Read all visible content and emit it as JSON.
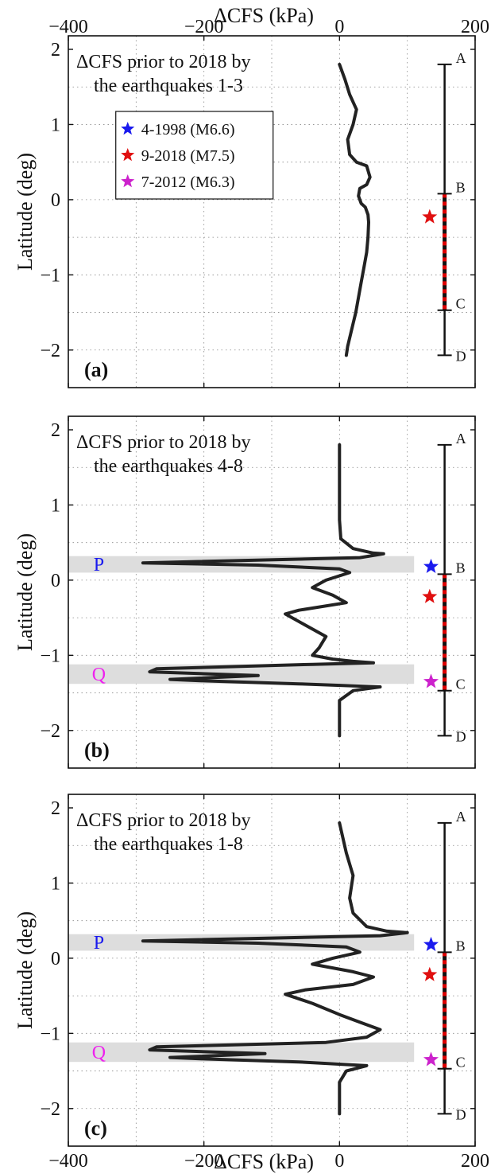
{
  "figure": {
    "top_xlabel": "ΔCFS (kPa)",
    "bottom_xlabel": "ΔCFS (kPa)",
    "ylabel": "Latitude (deg)",
    "xticks": [
      -400,
      -200,
      0,
      200
    ],
    "yticks": [
      2,
      1,
      0,
      -1,
      -2
    ],
    "xlim": [
      -400,
      200
    ],
    "ylim": [
      -2.5,
      2
    ],
    "colors": {
      "curve": "#222222",
      "band": "#dddddd",
      "fault": "#111111",
      "rupture": "#e00000"
    }
  },
  "legend": [
    {
      "label": "4-1998 (M6.6)",
      "color": "#1a1aee"
    },
    {
      "label": "9-2018 (M7.5)",
      "color": "#e01010"
    },
    {
      "label": "7-2012 (M6.3)",
      "color": "#cc22cc"
    }
  ],
  "fault_segment": {
    "points": [
      {
        "name": "A",
        "lat": 1.8
      },
      {
        "name": "B",
        "lat": 0.08
      },
      {
        "name": "C",
        "lat": -1.47
      },
      {
        "name": "D",
        "lat": -2.07
      }
    ],
    "x": 155
  },
  "panels": [
    {
      "label": "(a)",
      "annotation_line1": "ΔCFS prior to 2018 by",
      "annotation_line2": "the earthquakes 1-3",
      "show_legend": true,
      "bands": [],
      "stars": [
        {
          "event": "9-2018 (M7.5)",
          "lat": -0.23,
          "x": 133,
          "color": "#e01010"
        }
      ]
    },
    {
      "label": "(b)",
      "annotation_line1": "ΔCFS prior to 2018 by",
      "annotation_line2": "the earthquakes 4-8",
      "show_legend": false,
      "bands": [
        {
          "label": "P",
          "label_color": "#1a1aee",
          "lat_min": 0.1,
          "lat_max": 0.32
        },
        {
          "label": "Q",
          "label_color": "#ee22ee",
          "lat_min": -1.38,
          "lat_max": -1.12
        }
      ],
      "stars": [
        {
          "event": "4-1998 (M6.6)",
          "lat": 0.18,
          "x": 135,
          "color": "#1a1aee"
        },
        {
          "event": "9-2018 (M7.5)",
          "lat": -0.22,
          "x": 133,
          "color": "#e01010"
        },
        {
          "event": "7-2012 (M6.3)",
          "lat": -1.35,
          "x": 135,
          "color": "#cc22cc"
        }
      ]
    },
    {
      "label": "(c)",
      "annotation_line1": "ΔCFS prior to 2018 by",
      "annotation_line2": "the earthquakes 1-8",
      "show_legend": false,
      "bands": [
        {
          "label": "P",
          "label_color": "#1a1aee",
          "lat_min": 0.1,
          "lat_max": 0.32
        },
        {
          "label": "Q",
          "label_color": "#ee22ee",
          "lat_min": -1.38,
          "lat_max": -1.12
        }
      ],
      "stars": [
        {
          "event": "4-1998 (M6.6)",
          "lat": 0.18,
          "x": 135,
          "color": "#1a1aee"
        },
        {
          "event": "9-2018 (M7.5)",
          "lat": -0.22,
          "x": 133,
          "color": "#e01010"
        },
        {
          "event": "7-2012 (M6.3)",
          "lat": -1.35,
          "x": 135,
          "color": "#cc22cc"
        }
      ]
    }
  ],
  "chart_data": [
    {
      "type": "line",
      "title": "ΔCFS prior to 2018 by the earthquakes 1-3",
      "xlabel": "ΔCFS (kPa)",
      "ylabel": "Latitude (deg)",
      "xlim": [
        -400,
        200
      ],
      "ylim": [
        -2.5,
        2
      ],
      "grid": true,
      "series": [
        {
          "x": [
            0,
            8,
            15,
            25,
            20,
            12,
            15,
            25,
            40,
            45,
            40,
            30,
            28,
            32,
            38,
            42,
            43,
            42,
            40,
            36,
            32,
            28,
            24,
            20,
            16,
            12,
            10
          ],
          "y": [
            1.8,
            1.6,
            1.4,
            1.2,
            1.0,
            0.8,
            0.6,
            0.5,
            0.45,
            0.3,
            0.2,
            0.15,
            0.05,
            -0.05,
            -0.1,
            -0.2,
            -0.3,
            -0.5,
            -0.7,
            -0.9,
            -1.1,
            -1.3,
            -1.5,
            -1.65,
            -1.8,
            -1.95,
            -2.07
          ]
        }
      ]
    },
    {
      "type": "line",
      "title": "ΔCFS prior to 2018 by the earthquakes 4-8",
      "xlabel": "ΔCFS (kPa)",
      "ylabel": "Latitude (deg)",
      "xlim": [
        -400,
        200
      ],
      "ylim": [
        -2.5,
        2
      ],
      "grid": true,
      "series": [
        {
          "x": [
            0,
            0,
            0,
            2,
            20,
            50,
            65,
            30,
            -290,
            -120,
            0,
            15,
            -20,
            -40,
            -10,
            10,
            -60,
            -80,
            -50,
            -20,
            -30,
            -40,
            -10,
            20,
            50,
            -40,
            -270,
            -280,
            -120,
            -250,
            -200,
            -60,
            60,
            20,
            0,
            0
          ],
          "y": [
            1.8,
            1.2,
            0.8,
            0.55,
            0.42,
            0.36,
            0.35,
            0.3,
            0.23,
            0.2,
            0.15,
            0.1,
            0.0,
            -0.1,
            -0.2,
            -0.3,
            -0.4,
            -0.45,
            -0.6,
            -0.75,
            -0.9,
            -1.0,
            -1.05,
            -1.08,
            -1.1,
            -1.12,
            -1.18,
            -1.22,
            -1.27,
            -1.32,
            -1.34,
            -1.38,
            -1.42,
            -1.47,
            -1.6,
            -2.07
          ]
        }
      ]
    },
    {
      "type": "line",
      "title": "ΔCFS prior to 2018 by the earthquakes 1-8",
      "xlabel": "ΔCFS (kPa)",
      "ylabel": "Latitude (deg)",
      "xlim": [
        -400,
        200
      ],
      "ylim": [
        -2.5,
        2
      ],
      "grid": true,
      "series": [
        {
          "x": [
            0,
            10,
            20,
            15,
            20,
            40,
            70,
            100,
            60,
            -290,
            -120,
            10,
            30,
            -10,
            -40,
            20,
            50,
            20,
            -50,
            -80,
            -40,
            0,
            30,
            60,
            40,
            -20,
            -270,
            -280,
            -110,
            -250,
            -200,
            -60,
            40,
            10,
            0,
            0
          ],
          "y": [
            1.8,
            1.4,
            1.1,
            0.8,
            0.6,
            0.42,
            0.36,
            0.34,
            0.3,
            0.23,
            0.2,
            0.15,
            0.08,
            0.0,
            -0.08,
            -0.18,
            -0.25,
            -0.35,
            -0.42,
            -0.48,
            -0.6,
            -0.75,
            -0.85,
            -0.95,
            -1.05,
            -1.12,
            -1.18,
            -1.22,
            -1.27,
            -1.32,
            -1.34,
            -1.38,
            -1.43,
            -1.5,
            -1.65,
            -2.07
          ]
        }
      ]
    }
  ]
}
